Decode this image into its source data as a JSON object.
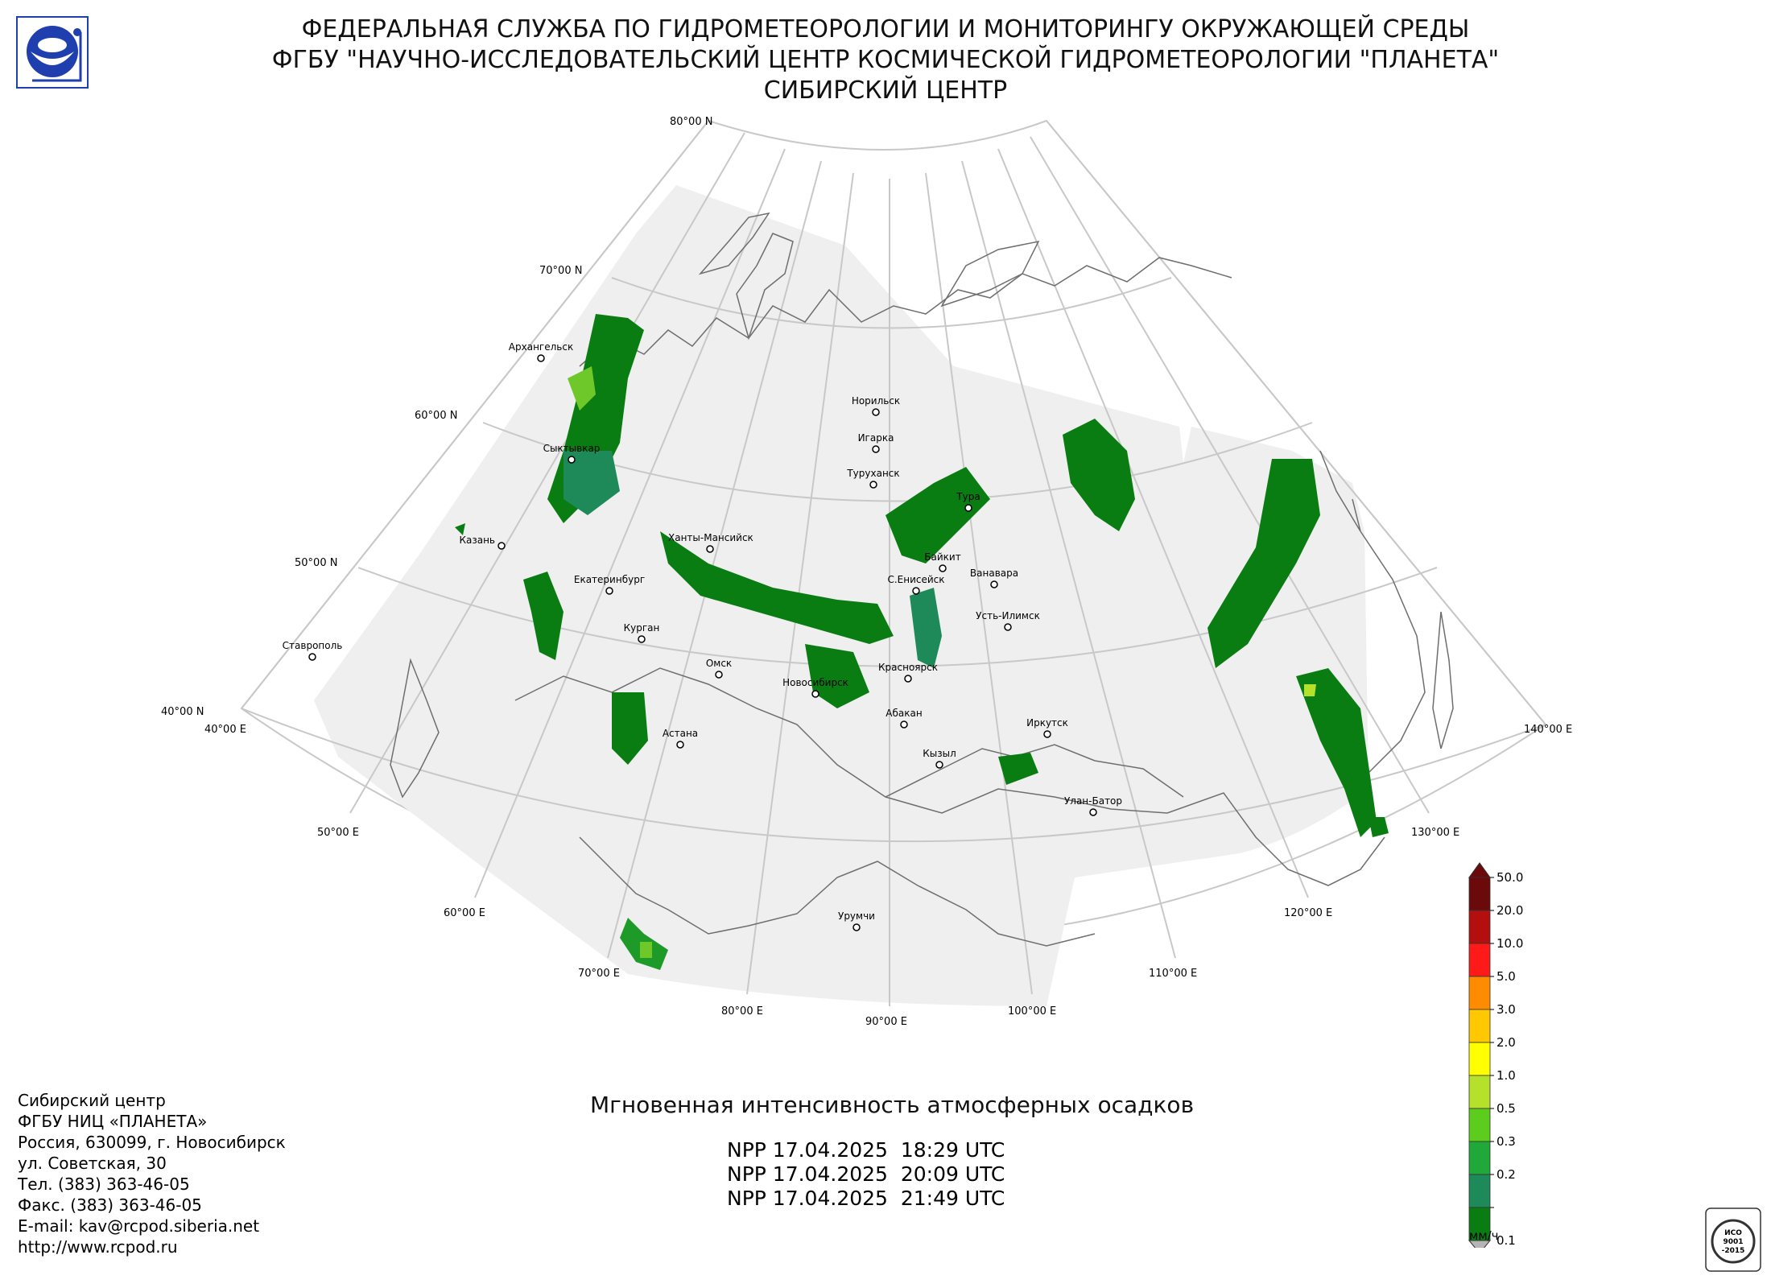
{
  "header": {
    "line1": "ФЕДЕРАЛЬНАЯ СЛУЖБА ПО ГИДРОМЕТЕОРОЛОГИИ И МОНИТОРИНГУ ОКРУЖАЮЩЕЙ СРЕДЫ",
    "line2": "ФГБУ \"НАУЧНО-ИССЛЕДОВАТЕЛЬСКИЙ ЦЕНТР КОСМИЧЕСКОЙ ГИДРОМЕТЕОРОЛОГИИ \"ПЛАНЕТА\"",
    "line3": "СИБИРСКИЙ ЦЕНТР"
  },
  "map": {
    "lat_labels": [
      "80°00 N",
      "70°00 N",
      "60°00 N",
      "50°00 N",
      "40°00 N"
    ],
    "lon_labels": [
      "40°00 E",
      "50°00 E",
      "60°00 E",
      "70°00 E",
      "80°00 E",
      "90°00 E",
      "100°00 E",
      "110°00 E",
      "120°00 E",
      "130°00 E",
      "140°00 E"
    ],
    "cities": [
      {
        "name": "Архангельск"
      },
      {
        "name": "Норильск"
      },
      {
        "name": "Игарка"
      },
      {
        "name": "Туруханск"
      },
      {
        "name": "Сыктывкар"
      },
      {
        "name": "Тура"
      },
      {
        "name": "Казань"
      },
      {
        "name": "Ханты-Мансийск"
      },
      {
        "name": "Байкит"
      },
      {
        "name": "Ванавара"
      },
      {
        "name": "Екатеринбург"
      },
      {
        "name": "С.Енисейск"
      },
      {
        "name": "Усть-Илимск"
      },
      {
        "name": "Курган"
      },
      {
        "name": "Ставрополь"
      },
      {
        "name": "Омск"
      },
      {
        "name": "Красноярск"
      },
      {
        "name": "Новосибирск"
      },
      {
        "name": "Абакан"
      },
      {
        "name": "Иркутск"
      },
      {
        "name": "Астана"
      },
      {
        "name": "Кызыл"
      },
      {
        "name": "Улан-Батор"
      },
      {
        "name": "Урумчи"
      }
    ],
    "colors": {
      "coverage": "#efefef",
      "graticule": "#c8c8c8",
      "coast": "#6e6e6e",
      "precip_dark": "#0a7d12",
      "precip_mid": "#1e9a28",
      "precip_light": "#6ec82a"
    }
  },
  "product": {
    "title": "Мгновенная интенсивность атмосферных осадков",
    "passes": [
      "NPP 17.04.2025  18:29 UTC",
      "NPP 17.04.2025  20:09 UTC",
      "NPP 17.04.2025  21:49 UTC"
    ]
  },
  "legend": {
    "unit": "мм/ч",
    "levels": [
      {
        "value": "50.0",
        "color": "#6b0a0a"
      },
      {
        "value": "20.0",
        "color": "#b30f0f"
      },
      {
        "value": "10.0",
        "color": "#ff1a1a"
      },
      {
        "value": "5.0",
        "color": "#ff8c00"
      },
      {
        "value": "3.0",
        "color": "#ffc800"
      },
      {
        "value": "2.0",
        "color": "#ffff00"
      },
      {
        "value": "1.0",
        "color": "#b6e12a"
      },
      {
        "value": "0.5",
        "color": "#5ccd1c"
      },
      {
        "value": "0.3",
        "color": "#21a83a"
      },
      {
        "value": "0.2",
        "color": "#1e8a5a"
      },
      {
        "value": "0.1",
        "color": "#0a7d12"
      }
    ],
    "over_color": "#6b0a0a",
    "under_color": "#b5b5b5"
  },
  "contact": {
    "line1": "Сибирский центр",
    "line2": "ФГБУ НИЦ «ПЛАНЕТА»",
    "line3": "Россия, 630099, г. Новосибирск",
    "line4": "ул. Советская, 30",
    "line5": "Тел. (383) 363-46-05",
    "line6": "Факс. (383) 363-46-05",
    "line7": "E-mail: kav@rcpod.siberia.net",
    "line8": "http://www.rcpod.ru"
  },
  "iso_stamp": {
    "text_top": "ИСО",
    "text_mid": "9001",
    "text_bot": "-2015"
  }
}
